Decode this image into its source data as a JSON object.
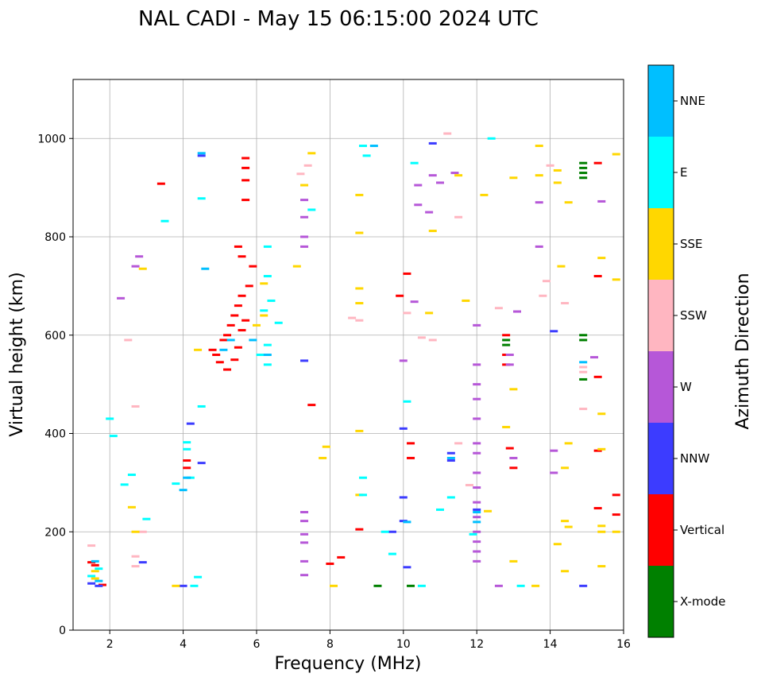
{
  "chart_data": {
    "type": "scatter",
    "title": "NAL CADI - May 15 06:15:00 2024 UTC",
    "xlabel": "Frequency (MHz)",
    "ylabel": "Virtual height (km)",
    "xlim": [
      1.0,
      16.0
    ],
    "ylim": [
      0,
      1120
    ],
    "xticks": [
      2,
      4,
      6,
      8,
      10,
      12,
      14,
      16
    ],
    "yticks": [
      0,
      200,
      400,
      600,
      800,
      1000
    ],
    "grid": true,
    "colorbar": {
      "label": "Azimuth Direction",
      "categories": [
        {
          "name": "X-mode",
          "color": "#008000"
        },
        {
          "name": "Vertical",
          "color": "#ff0000"
        },
        {
          "name": "NNW",
          "color": "#3c3cff"
        },
        {
          "name": "W",
          "color": "#b657d8"
        },
        {
          "name": "SSW",
          "color": "#ffb6c1"
        },
        {
          "name": "SSE",
          "color": "#ffd700"
        },
        {
          "name": "E",
          "color": "#00ffff"
        },
        {
          "name": "NNE",
          "color": "#00bfff"
        }
      ]
    },
    "series": [
      {
        "name": "X-mode",
        "points": [
          [
            9.3,
            90
          ],
          [
            10.2,
            90
          ],
          [
            12.8,
            580
          ],
          [
            12.8,
            590
          ],
          [
            14.9,
            920
          ],
          [
            14.9,
            930
          ],
          [
            14.9,
            940
          ],
          [
            14.9,
            950
          ],
          [
            14.9,
            510
          ],
          [
            14.9,
            600
          ],
          [
            14.9,
            590
          ]
        ]
      },
      {
        "name": "Vertical",
        "points": [
          [
            1.5,
            138
          ],
          [
            1.6,
            132
          ],
          [
            1.8,
            92
          ],
          [
            3.4,
            908
          ],
          [
            5.7,
            960
          ],
          [
            5.7,
            940
          ],
          [
            5.7,
            915
          ],
          [
            5.7,
            875
          ],
          [
            4.8,
            570
          ],
          [
            4.9,
            560
          ],
          [
            5.0,
            545
          ],
          [
            5.1,
            590
          ],
          [
            5.2,
            600
          ],
          [
            5.3,
            620
          ],
          [
            5.4,
            640
          ],
          [
            5.5,
            660
          ],
          [
            5.6,
            680
          ],
          [
            5.2,
            530
          ],
          [
            5.4,
            550
          ],
          [
            5.5,
            575
          ],
          [
            5.6,
            610
          ],
          [
            5.7,
            630
          ],
          [
            5.8,
            700
          ],
          [
            5.9,
            740
          ],
          [
            5.5,
            780
          ],
          [
            5.6,
            760
          ],
          [
            4.1,
            345
          ],
          [
            4.1,
            330
          ],
          [
            7.5,
            458
          ],
          [
            8.0,
            135
          ],
          [
            8.3,
            148
          ],
          [
            8.8,
            205
          ],
          [
            9.9,
            680
          ],
          [
            10.1,
            725
          ],
          [
            10.2,
            380
          ],
          [
            10.2,
            350
          ],
          [
            12.8,
            600
          ],
          [
            12.8,
            560
          ],
          [
            12.8,
            540
          ],
          [
            12.9,
            370
          ],
          [
            13.0,
            330
          ],
          [
            15.3,
            950
          ],
          [
            15.3,
            720
          ],
          [
            15.3,
            515
          ],
          [
            15.3,
            365
          ],
          [
            15.3,
            248
          ],
          [
            15.8,
            275
          ],
          [
            15.8,
            235
          ]
        ]
      },
      {
        "name": "NNW",
        "points": [
          [
            1.5,
            95
          ],
          [
            1.7,
            90
          ],
          [
            2.9,
            138
          ],
          [
            4.0,
            90
          ],
          [
            4.2,
            420
          ],
          [
            4.5,
            340
          ],
          [
            4.5,
            965
          ],
          [
            7.3,
            548
          ],
          [
            9.7,
            200
          ],
          [
            10.0,
            410
          ],
          [
            10.0,
            270
          ],
          [
            10.0,
            222
          ],
          [
            10.1,
            128
          ],
          [
            11.3,
            345
          ],
          [
            11.3,
            360
          ],
          [
            12.0,
            245
          ],
          [
            14.1,
            608
          ],
          [
            14.9,
            90
          ],
          [
            10.8,
            990
          ]
        ]
      },
      {
        "name": "W",
        "points": [
          [
            2.3,
            675
          ],
          [
            2.7,
            740
          ],
          [
            2.8,
            760
          ],
          [
            7.3,
            875
          ],
          [
            7.3,
            840
          ],
          [
            7.3,
            800
          ],
          [
            7.3,
            780
          ],
          [
            7.3,
            240
          ],
          [
            7.3,
            222
          ],
          [
            7.3,
            195
          ],
          [
            7.3,
            178
          ],
          [
            7.3,
            140
          ],
          [
            7.3,
            112
          ],
          [
            10.0,
            548
          ],
          [
            10.3,
            668
          ],
          [
            10.4,
            905
          ],
          [
            10.4,
            865
          ],
          [
            10.7,
            850
          ],
          [
            10.8,
            925
          ],
          [
            11.0,
            910
          ],
          [
            11.4,
            930
          ],
          [
            12.0,
            620
          ],
          [
            12.0,
            540
          ],
          [
            12.0,
            500
          ],
          [
            12.0,
            470
          ],
          [
            12.0,
            430
          ],
          [
            12.0,
            380
          ],
          [
            12.0,
            360
          ],
          [
            12.0,
            320
          ],
          [
            12.0,
            290
          ],
          [
            12.0,
            260
          ],
          [
            12.0,
            230
          ],
          [
            12.0,
            200
          ],
          [
            12.0,
            180
          ],
          [
            12.0,
            160
          ],
          [
            12.0,
            140
          ],
          [
            12.9,
            560
          ],
          [
            12.9,
            540
          ],
          [
            13.0,
            350
          ],
          [
            13.1,
            648
          ],
          [
            13.7,
            870
          ],
          [
            13.7,
            780
          ],
          [
            14.1,
            320
          ],
          [
            14.1,
            365
          ],
          [
            15.2,
            555
          ],
          [
            15.4,
            872
          ],
          [
            12.6,
            90
          ]
        ]
      },
      {
        "name": "SSW",
        "points": [
          [
            1.5,
            172
          ],
          [
            2.5,
            590
          ],
          [
            2.7,
            455
          ],
          [
            2.7,
            150
          ],
          [
            2.7,
            130
          ],
          [
            2.9,
            200
          ],
          [
            7.2,
            928
          ],
          [
            7.4,
            945
          ],
          [
            8.6,
            635
          ],
          [
            8.8,
            630
          ],
          [
            10.1,
            645
          ],
          [
            10.5,
            595
          ],
          [
            10.8,
            590
          ],
          [
            11.2,
            1010
          ],
          [
            11.5,
            840
          ],
          [
            11.5,
            380
          ],
          [
            12.6,
            655
          ],
          [
            13.8,
            680
          ],
          [
            13.9,
            710
          ],
          [
            14.0,
            945
          ],
          [
            14.4,
            665
          ],
          [
            14.9,
            450
          ],
          [
            14.9,
            535
          ],
          [
            14.9,
            525
          ],
          [
            11.8,
            295
          ]
        ]
      },
      {
        "name": "SSE",
        "points": [
          [
            1.6,
            120
          ],
          [
            1.6,
            105
          ],
          [
            2.6,
            250
          ],
          [
            2.7,
            200
          ],
          [
            2.9,
            735
          ],
          [
            3.8,
            90
          ],
          [
            4.4,
            570
          ],
          [
            6.0,
            620
          ],
          [
            6.2,
            640
          ],
          [
            6.2,
            705
          ],
          [
            7.1,
            740
          ],
          [
            7.3,
            905
          ],
          [
            7.5,
            970
          ],
          [
            7.8,
            350
          ],
          [
            7.9,
            373
          ],
          [
            8.1,
            90
          ],
          [
            8.8,
            885
          ],
          [
            8.8,
            808
          ],
          [
            8.8,
            695
          ],
          [
            8.8,
            665
          ],
          [
            8.8,
            405
          ],
          [
            8.8,
            275
          ],
          [
            10.7,
            645
          ],
          [
            10.8,
            812
          ],
          [
            11.5,
            925
          ],
          [
            11.7,
            670
          ],
          [
            12.2,
            885
          ],
          [
            12.3,
            242
          ],
          [
            12.8,
            413
          ],
          [
            13.0,
            920
          ],
          [
            13.0,
            490
          ],
          [
            13.0,
            140
          ],
          [
            13.7,
            985
          ],
          [
            13.7,
            925
          ],
          [
            13.6,
            90
          ],
          [
            14.2,
            935
          ],
          [
            14.2,
            910
          ],
          [
            14.2,
            175
          ],
          [
            14.3,
            740
          ],
          [
            14.5,
            870
          ],
          [
            14.5,
            380
          ],
          [
            14.4,
            330
          ],
          [
            14.4,
            222
          ],
          [
            14.5,
            210
          ],
          [
            14.4,
            120
          ],
          [
            15.4,
            757
          ],
          [
            15.4,
            440
          ],
          [
            15.4,
            368
          ],
          [
            15.4,
            212
          ],
          [
            15.4,
            200
          ],
          [
            15.4,
            130
          ],
          [
            15.8,
            968
          ],
          [
            15.8,
            713
          ],
          [
            15.8,
            200
          ]
        ]
      },
      {
        "name": "E",
        "points": [
          [
            1.5,
            110
          ],
          [
            1.7,
            125
          ],
          [
            2.0,
            430
          ],
          [
            2.1,
            395
          ],
          [
            2.4,
            296
          ],
          [
            2.6,
            316
          ],
          [
            3.0,
            226
          ],
          [
            3.5,
            832
          ],
          [
            3.8,
            298
          ],
          [
            4.1,
            382
          ],
          [
            4.1,
            368
          ],
          [
            4.2,
            310
          ],
          [
            4.3,
            90
          ],
          [
            4.4,
            108
          ],
          [
            4.5,
            455
          ],
          [
            4.5,
            878
          ],
          [
            6.3,
            780
          ],
          [
            6.3,
            720
          ],
          [
            6.4,
            670
          ],
          [
            6.2,
            650
          ],
          [
            6.3,
            580
          ],
          [
            6.1,
            560
          ],
          [
            6.3,
            540
          ],
          [
            6.6,
            625
          ],
          [
            7.5,
            855
          ],
          [
            8.9,
            985
          ],
          [
            9.0,
            965
          ],
          [
            8.9,
            310
          ],
          [
            8.9,
            275
          ],
          [
            9.5,
            200
          ],
          [
            9.7,
            155
          ],
          [
            10.1,
            465
          ],
          [
            10.3,
            950
          ],
          [
            11.3,
            270
          ],
          [
            11.0,
            245
          ],
          [
            12.4,
            1000
          ],
          [
            13.2,
            90
          ],
          [
            10.5,
            90
          ],
          [
            11.9,
            195
          ]
        ]
      },
      {
        "name": "NNE",
        "points": [
          [
            1.6,
            140
          ],
          [
            1.7,
            100
          ],
          [
            4.0,
            285
          ],
          [
            4.1,
            310
          ],
          [
            4.5,
            970
          ],
          [
            4.6,
            735
          ],
          [
            5.1,
            570
          ],
          [
            5.3,
            590
          ],
          [
            5.9,
            590
          ],
          [
            6.3,
            560
          ],
          [
            9.2,
            985
          ],
          [
            11.3,
            350
          ],
          [
            12.0,
            240
          ],
          [
            12.0,
            220
          ],
          [
            10.1,
            220
          ],
          [
            14.9,
            545
          ]
        ]
      }
    ]
  }
}
